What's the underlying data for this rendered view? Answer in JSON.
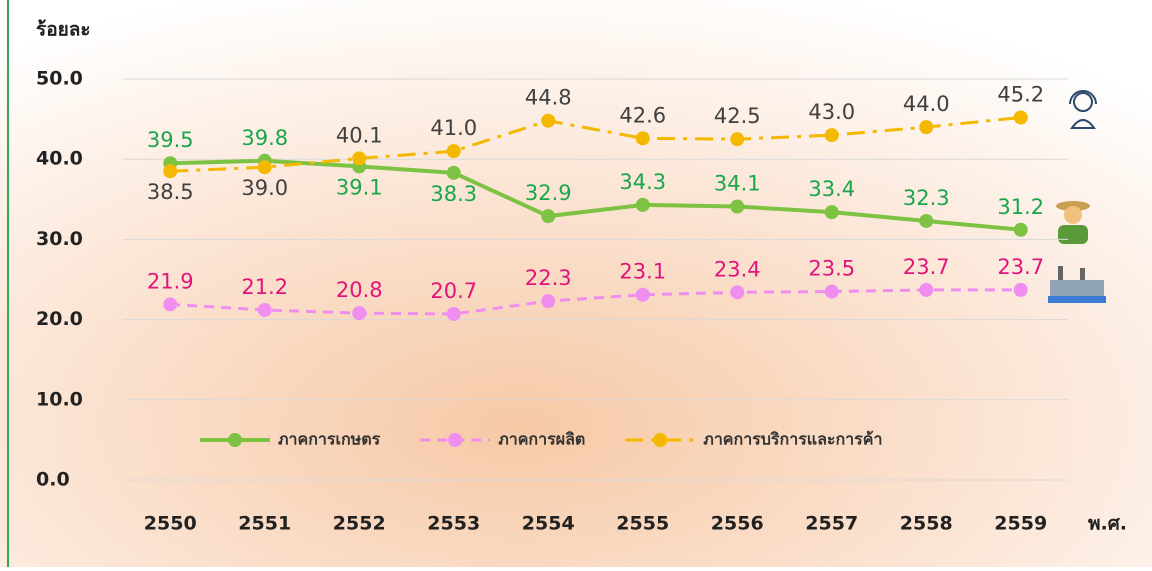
{
  "chart_data": {
    "type": "line",
    "y_label": "ร้อยละ",
    "x_label": "พ.ศ.",
    "categories": [
      "2550",
      "2551",
      "2552",
      "2553",
      "2554",
      "2555",
      "2556",
      "2557",
      "2558",
      "2559"
    ],
    "series": [
      {
        "name": "ภาคการเกษตร",
        "color": "#7dc243",
        "label_color": "#1aa64a",
        "style": "solid",
        "values": [
          39.5,
          39.8,
          39.1,
          38.3,
          32.9,
          34.3,
          34.1,
          33.4,
          32.3,
          31.2
        ],
        "value_labels": [
          "39.5",
          "39.8",
          "39.1",
          "38.3",
          "32.9",
          "34.3",
          "34.1",
          "33.4",
          "32.3",
          "31.2"
        ]
      },
      {
        "name": "ภาคการผลิต",
        "color": "#f08ef0",
        "label_color": "#e0147a",
        "style": "dashed",
        "values": [
          21.9,
          21.2,
          20.8,
          20.7,
          22.3,
          23.1,
          23.4,
          23.5,
          23.7,
          23.7
        ],
        "value_labels": [
          "21.9",
          "21.2",
          "20.8",
          "20.7",
          "22.3",
          "23.1",
          "23.4",
          "23.5",
          "23.7",
          "23.7"
        ]
      },
      {
        "name": "ภาคการบริการและการค้า",
        "color": "#f5b800",
        "label_color": "#404040",
        "style": "dashdot",
        "values": [
          38.5,
          39.0,
          40.1,
          41.0,
          44.8,
          42.6,
          42.5,
          43.0,
          44.0,
          45.2
        ],
        "value_labels": [
          "38.5",
          "39.0",
          "40.1",
          "41.0",
          "44.8",
          "42.6",
          "42.5",
          "43.0",
          "44.0",
          "45.2"
        ]
      }
    ],
    "ylim": [
      0,
      50
    ],
    "yticks": [
      {
        "value": 0,
        "label": "0.0"
      },
      {
        "value": 10,
        "label": "10.0"
      },
      {
        "value": 20,
        "label": "20.0"
      },
      {
        "value": 30,
        "label": "30.0"
      },
      {
        "value": 40,
        "label": "40.0"
      },
      {
        "value": 50,
        "label": "50.0"
      }
    ],
    "grid": true
  }
}
